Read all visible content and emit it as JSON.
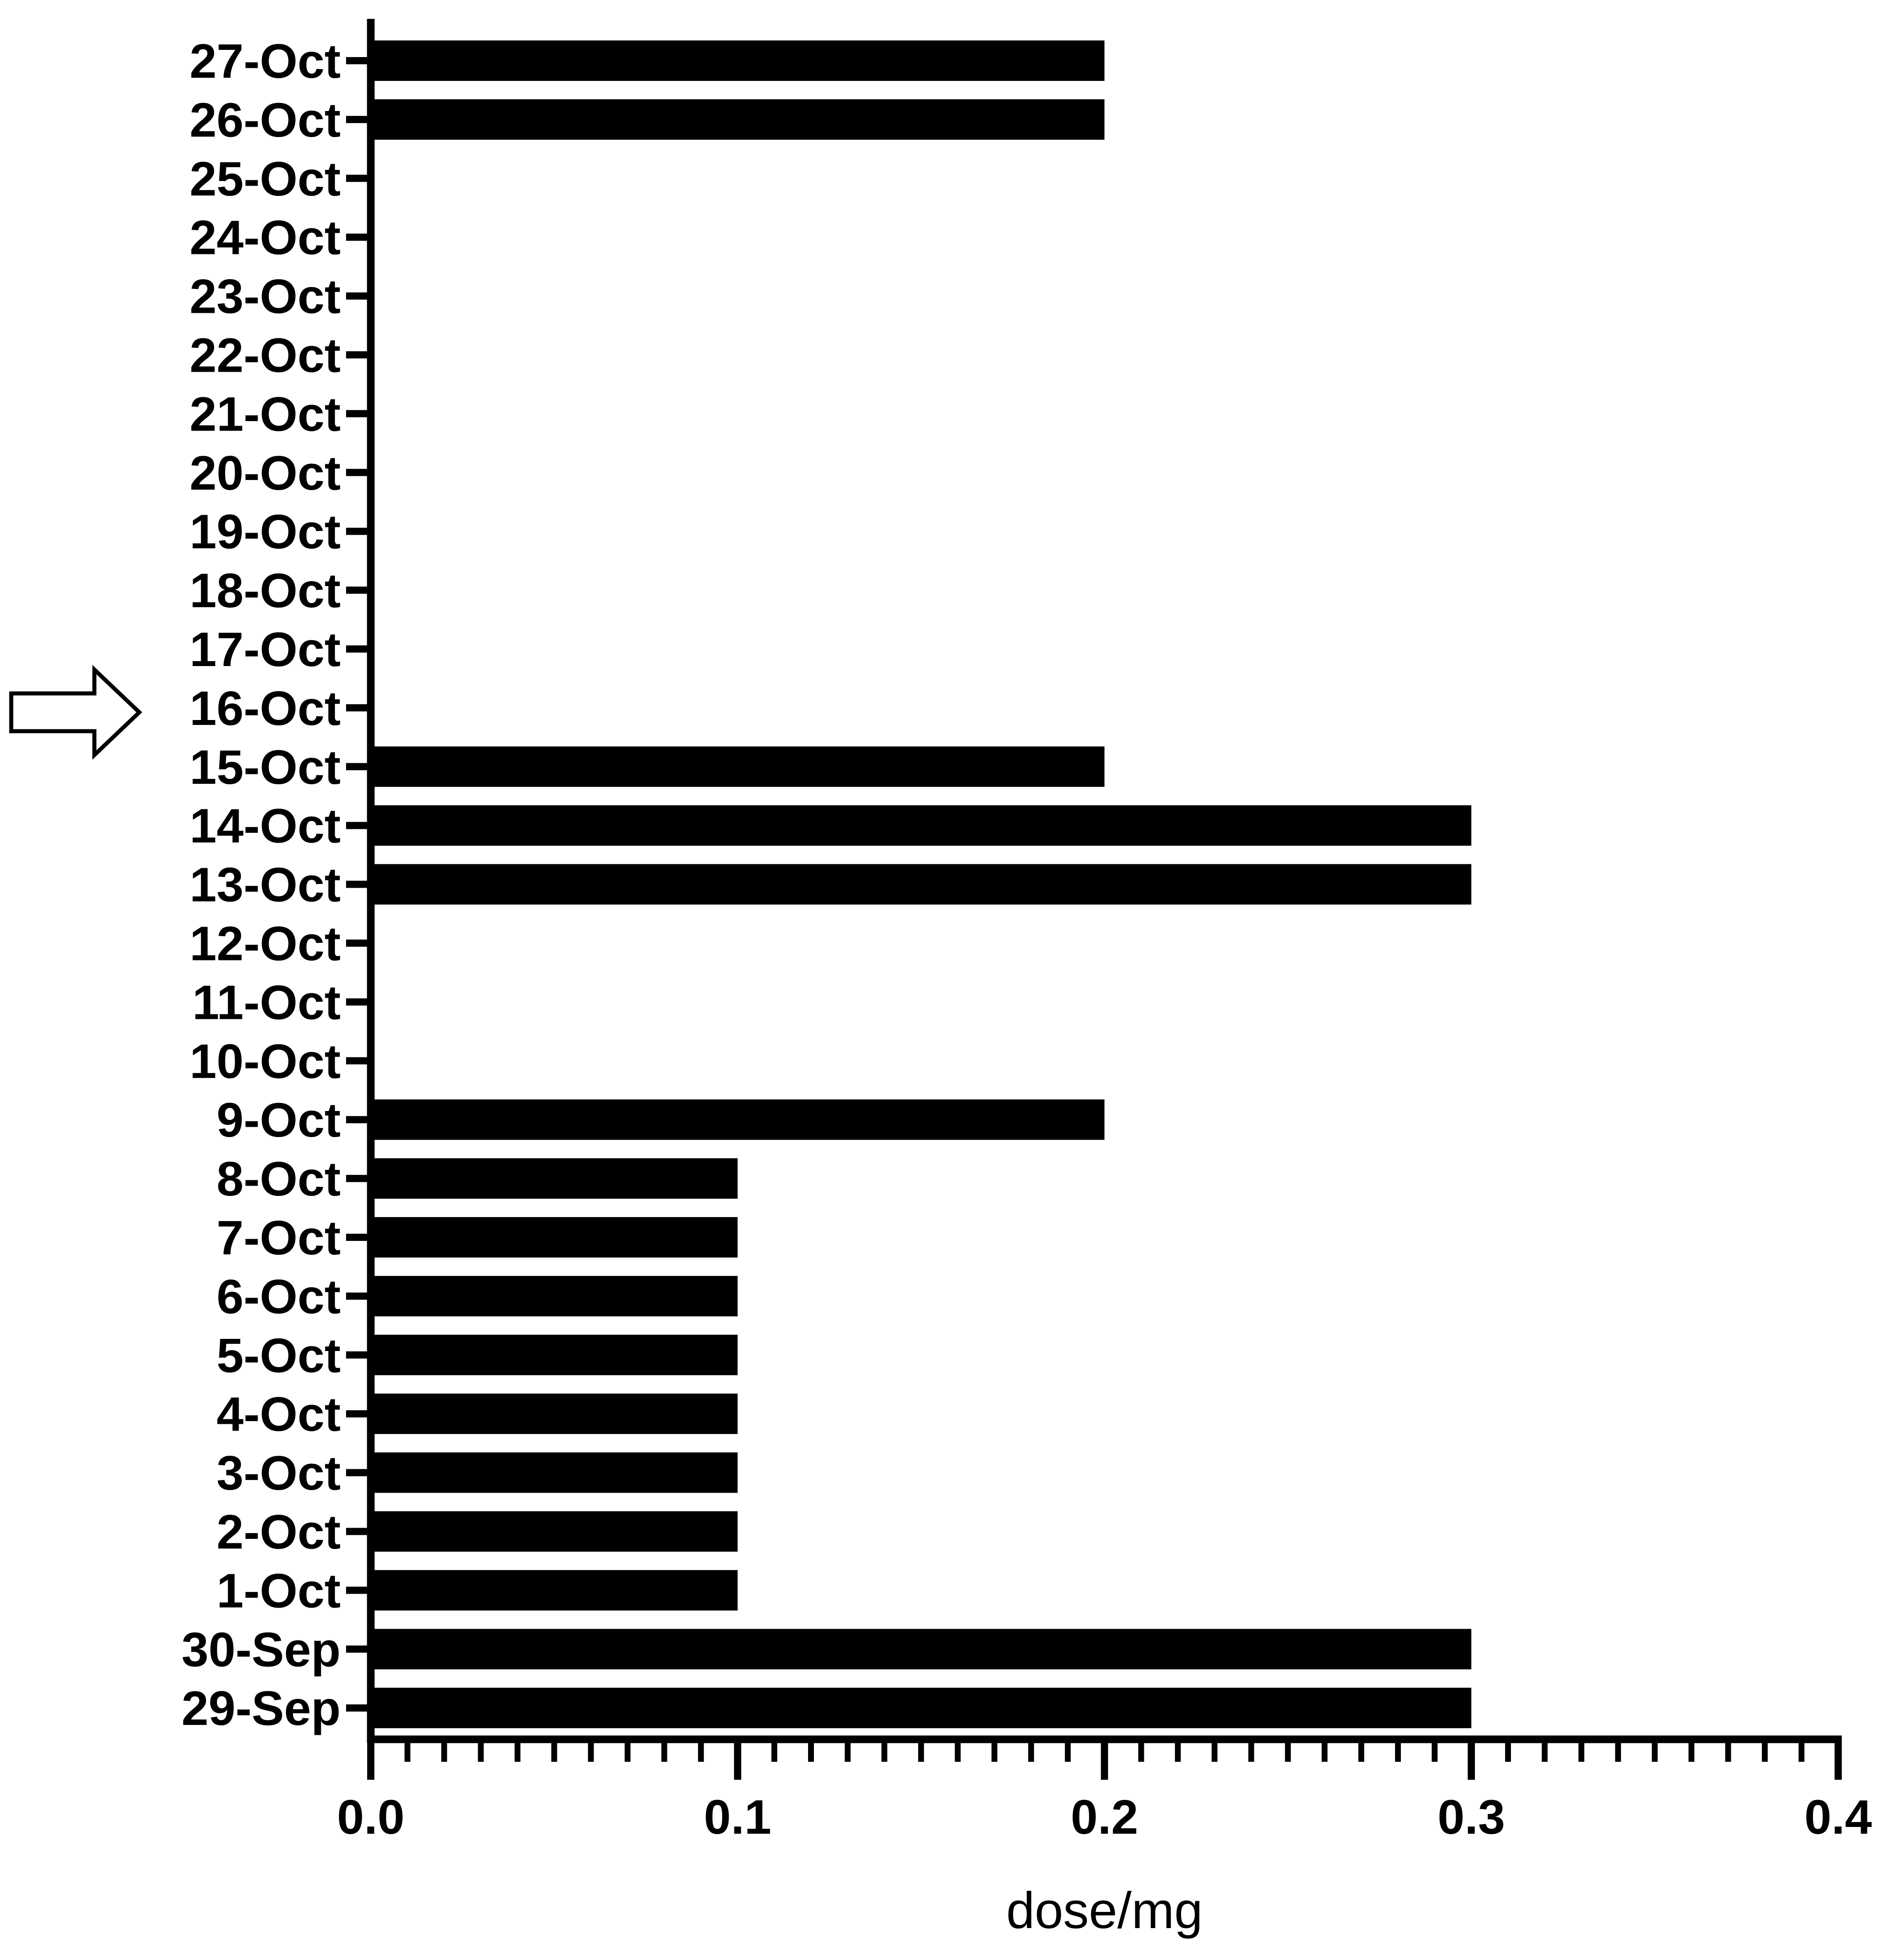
{
  "chart_data": {
    "type": "bar",
    "orientation": "horizontal",
    "title": "",
    "xlabel": "dose/mg",
    "ylabel": "",
    "xlim": [
      0,
      0.4
    ],
    "x_ticks": [
      "0.0",
      "0.1",
      "0.2",
      "0.3",
      "0.4"
    ],
    "grid": false,
    "categories": [
      "27-Oct",
      "26-Oct",
      "25-Oct",
      "24-Oct",
      "23-Oct",
      "22-Oct",
      "21-Oct",
      "20-Oct",
      "19-Oct",
      "18-Oct",
      "17-Oct",
      "16-Oct",
      "15-Oct",
      "14-Oct",
      "13-Oct",
      "12-Oct",
      "11-Oct",
      "10-Oct",
      "9-Oct",
      "8-Oct",
      "7-Oct",
      "6-Oct",
      "5-Oct",
      "4-Oct",
      "3-Oct",
      "2-Oct",
      "1-Oct",
      "30-Sep",
      "29-Sep"
    ],
    "values": [
      0.2,
      0.2,
      0,
      0,
      0,
      0,
      0,
      0,
      0,
      0,
      0,
      0,
      0.2,
      0.3,
      0.3,
      0,
      0,
      0,
      0.2,
      0.1,
      0.1,
      0.1,
      0.1,
      0.1,
      0.1,
      0.1,
      0.1,
      0.3,
      0.3
    ],
    "bar_color": "#000000",
    "annotations": [
      {
        "type": "arrow",
        "target": "16-Oct",
        "icon": "right-arrow-icon",
        "style": "outline"
      }
    ]
  }
}
